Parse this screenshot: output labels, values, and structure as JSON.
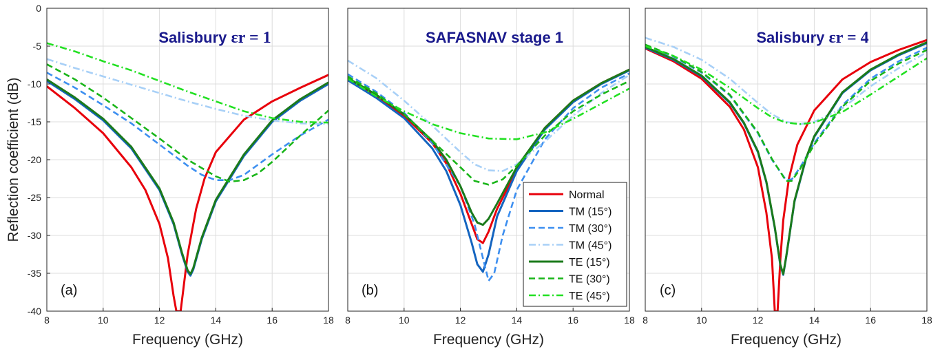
{
  "chart_data": [
    {
      "type": "line",
      "title_prefix": "Salisbury ",
      "title_symbol": "εr = 1",
      "panel_label": "(a)",
      "xlabel": "Frequency (GHz)",
      "ylabel": "Reflection coefficient (dB)",
      "xlim": [
        8,
        18
      ],
      "ylim": [
        -40,
        0
      ],
      "xticks": [
        "8",
        "10",
        "12",
        "14",
        "16",
        "18"
      ],
      "yticks": [
        "0",
        "-5",
        "-10",
        "-15",
        "-20",
        "-25",
        "-30",
        "-35",
        "-40"
      ],
      "grid": true,
      "series": [
        {
          "name": "Normal",
          "x": [
            8,
            9,
            10,
            11,
            11.5,
            12,
            12.3,
            12.5,
            12.6,
            12.75,
            12.85,
            13,
            13.3,
            13.6,
            14,
            15,
            16,
            17,
            18
          ],
          "y": [
            -10.3,
            -13.2,
            -16.5,
            -21,
            -24,
            -28.5,
            -33,
            -38,
            -40,
            -40,
            -37,
            -32.5,
            -26.5,
            -22.5,
            -19,
            -14.7,
            -12.3,
            -10.5,
            -8.8
          ]
        },
        {
          "name": "TM (15°)",
          "x": [
            8,
            9,
            10,
            11,
            12,
            12.5,
            12.8,
            13,
            13.1,
            13.2,
            13.5,
            14,
            15,
            16,
            17,
            18
          ],
          "y": [
            -9.6,
            -12,
            -14.8,
            -18.5,
            -24,
            -28.5,
            -32.5,
            -34.8,
            -35.3,
            -34.5,
            -30.5,
            -25.5,
            -19.5,
            -15,
            -12.2,
            -10
          ]
        },
        {
          "name": "TM (30°)",
          "x": [
            8,
            9,
            10,
            11,
            12,
            13,
            13.5,
            14,
            14.5,
            15,
            16,
            17,
            18
          ],
          "y": [
            -8.5,
            -10.5,
            -12.8,
            -15.2,
            -18,
            -20.8,
            -22,
            -22.7,
            -22.7,
            -22,
            -19.3,
            -16.8,
            -14.7
          ]
        },
        {
          "name": "TM (45°)",
          "x": [
            8,
            9,
            10,
            11,
            12,
            13,
            14,
            15,
            16,
            17,
            18
          ],
          "y": [
            -6.7,
            -7.9,
            -9,
            -10.1,
            -11.2,
            -12.3,
            -13.3,
            -14.2,
            -14.8,
            -15.2,
            -15.3
          ]
        },
        {
          "name": "TE (15°)",
          "x": [
            8,
            9,
            10,
            11,
            12,
            12.5,
            12.8,
            13,
            13.1,
            13.2,
            13.5,
            14,
            15,
            16,
            17,
            18
          ],
          "y": [
            -9.4,
            -11.8,
            -14.6,
            -18.3,
            -23.8,
            -28.3,
            -32.3,
            -34.6,
            -35.1,
            -34.3,
            -30.3,
            -25.3,
            -19.3,
            -14.8,
            -12,
            -9.8
          ]
        },
        {
          "name": "TE (30°)",
          "x": [
            8,
            9,
            10,
            11,
            12,
            13,
            14,
            14.5,
            15,
            15.5,
            16,
            17,
            18
          ],
          "y": [
            -7.4,
            -9.4,
            -11.8,
            -14.5,
            -17.2,
            -20,
            -22.2,
            -22.9,
            -22.7,
            -21.8,
            -20.3,
            -16.8,
            -13.5
          ]
        },
        {
          "name": "TE (45°)",
          "x": [
            8,
            9,
            10,
            11,
            12,
            13,
            14,
            15,
            16,
            17,
            18
          ],
          "y": [
            -4.6,
            -5.7,
            -7,
            -8.2,
            -9.6,
            -11,
            -12.3,
            -13.6,
            -14.5,
            -15,
            -15.1
          ]
        }
      ]
    },
    {
      "type": "line",
      "title_prefix": "SAFASNAV stage 1",
      "title_symbol": "",
      "panel_label": "(b)",
      "xlabel": "Frequency (GHz)",
      "ylabel": "",
      "xlim": [
        8,
        18
      ],
      "ylim": [
        -40,
        0
      ],
      "xticks": [
        "8",
        "10",
        "12",
        "14",
        "16",
        "18"
      ],
      "yticks": [],
      "grid": true,
      "series": [
        {
          "name": "Normal",
          "x": [
            8,
            9,
            10,
            11,
            11.5,
            12,
            12.4,
            12.6,
            12.8,
            13,
            13.3,
            14,
            15,
            16,
            17,
            18
          ],
          "y": [
            -9.4,
            -11.6,
            -14.2,
            -17.8,
            -20.5,
            -24.5,
            -28.5,
            -30.5,
            -31,
            -29.5,
            -26.5,
            -21.3,
            -15.8,
            -12.2,
            -9.9,
            -8.1
          ]
        },
        {
          "name": "TM (15°)",
          "x": [
            8,
            9,
            10,
            11,
            11.5,
            12,
            12.4,
            12.6,
            12.8,
            13,
            13.3,
            14,
            15,
            16,
            17,
            18
          ],
          "y": [
            -9.5,
            -11.8,
            -14.5,
            -18.5,
            -21.5,
            -26,
            -31,
            -33.8,
            -34.8,
            -32.5,
            -27.5,
            -21.5,
            -16,
            -12.4,
            -10,
            -8.2
          ]
        },
        {
          "name": "TM (30°)",
          "x": [
            8,
            9,
            10,
            11,
            12,
            12.5,
            12.8,
            13,
            13.2,
            13.5,
            14,
            15,
            16,
            17,
            18
          ],
          "y": [
            -8.7,
            -11,
            -13.8,
            -17.8,
            -23.5,
            -28.5,
            -33,
            -36,
            -35,
            -30,
            -24,
            -17.3,
            -13.2,
            -10.5,
            -8.6
          ]
        },
        {
          "name": "TM (45°)",
          "x": [
            8,
            9,
            10,
            11,
            12,
            12.5,
            13,
            13.5,
            14,
            15,
            16,
            17,
            18
          ],
          "y": [
            -6.9,
            -9.2,
            -12.2,
            -15.5,
            -19,
            -20.6,
            -21.4,
            -21.5,
            -20.6,
            -17.6,
            -14.2,
            -11.2,
            -8.8
          ]
        },
        {
          "name": "TE (15°)",
          "x": [
            8,
            9,
            10,
            11,
            11.5,
            12,
            12.4,
            12.6,
            12.8,
            13,
            13.3,
            14,
            15,
            16,
            17,
            18
          ],
          "y": [
            -9.2,
            -11.4,
            -14,
            -17.5,
            -20,
            -23.5,
            -27,
            -28.3,
            -28.6,
            -27.8,
            -25.8,
            -21,
            -15.8,
            -12.2,
            -9.9,
            -8.1
          ]
        },
        {
          "name": "TE (30°)",
          "x": [
            8,
            9,
            10,
            11,
            12,
            12.5,
            13,
            13.5,
            14,
            15,
            16,
            17,
            18
          ],
          "y": [
            -9,
            -11.2,
            -14,
            -17.5,
            -21,
            -22.8,
            -23.3,
            -22.6,
            -20.8,
            -16.8,
            -13.6,
            -11.4,
            -9.6
          ]
        },
        {
          "name": "TE (45°)",
          "x": [
            8,
            9,
            10,
            11,
            12,
            13,
            14,
            15,
            16,
            17,
            18
          ],
          "y": [
            -9.3,
            -11.6,
            -13.6,
            -15.3,
            -16.5,
            -17.2,
            -17.3,
            -16.4,
            -14.6,
            -12.6,
            -10.6
          ]
        }
      ]
    },
    {
      "type": "line",
      "title_prefix": "Salisbury ",
      "title_symbol": "εr = 4",
      "panel_label": "(c)",
      "xlabel": "Frequency (GHz)",
      "ylabel": "",
      "xlim": [
        8,
        18
      ],
      "ylim": [
        -40,
        0
      ],
      "xticks": [
        "8",
        "10",
        "12",
        "14",
        "16",
        "18"
      ],
      "yticks": [],
      "grid": true,
      "series": [
        {
          "name": "Normal",
          "x": [
            8,
            9,
            10,
            11,
            11.5,
            12,
            12.3,
            12.5,
            12.6,
            12.7,
            12.8,
            12.9,
            13.1,
            13.4,
            14,
            15,
            16,
            17,
            18
          ],
          "y": [
            -5.3,
            -7,
            -9.3,
            -13,
            -16,
            -21,
            -27,
            -33,
            -40,
            -40,
            -33,
            -28,
            -22.5,
            -18,
            -13.5,
            -9.4,
            -7.1,
            -5.5,
            -4.2
          ]
        },
        {
          "name": "TM (15°)",
          "x": [
            8,
            9,
            10,
            11,
            11.5,
            12,
            12.3,
            12.6,
            12.8,
            12.9,
            13,
            13.3,
            13.7,
            14,
            15,
            16,
            17,
            18
          ],
          "y": [
            -5.2,
            -6.8,
            -9,
            -12.5,
            -15.2,
            -19,
            -23,
            -29,
            -34,
            -35.2,
            -33,
            -25.5,
            -20,
            -17,
            -11.2,
            -8.2,
            -6.2,
            -4.6
          ]
        },
        {
          "name": "TM (30°)",
          "x": [
            8,
            9,
            10,
            11,
            12,
            12.5,
            13,
            13.2,
            13.5,
            14,
            15,
            16,
            17,
            18
          ],
          "y": [
            -4.9,
            -6.4,
            -8.5,
            -11.5,
            -16.5,
            -20,
            -22.7,
            -22.6,
            -21,
            -17.8,
            -12.8,
            -9.3,
            -7,
            -5.2
          ]
        },
        {
          "name": "TM (45°)",
          "x": [
            8,
            9,
            10,
            11,
            12,
            12.5,
            13,
            13.5,
            14,
            15,
            16,
            17,
            18
          ],
          "y": [
            -3.9,
            -5.1,
            -6.8,
            -9.3,
            -12.5,
            -14,
            -15,
            -15.3,
            -15,
            -13.2,
            -10.3,
            -7.9,
            -5.8
          ]
        },
        {
          "name": "TE (15°)",
          "x": [
            8,
            9,
            10,
            11,
            11.5,
            12,
            12.3,
            12.6,
            12.8,
            12.9,
            13,
            13.3,
            13.7,
            14,
            15,
            16,
            17,
            18
          ],
          "y": [
            -5.1,
            -6.7,
            -8.9,
            -12.4,
            -15.1,
            -18.9,
            -22.9,
            -28.9,
            -33.9,
            -35.1,
            -32.9,
            -25.4,
            -19.9,
            -16.9,
            -11.1,
            -8.1,
            -6.1,
            -4.5
          ]
        },
        {
          "name": "TE (30°)",
          "x": [
            8,
            9,
            10,
            11,
            12,
            12.5,
            13,
            13.2,
            13.5,
            14,
            15,
            16,
            17,
            18
          ],
          "y": [
            -4.8,
            -6.3,
            -8.4,
            -11.4,
            -16.4,
            -19.9,
            -22.8,
            -22.8,
            -21.2,
            -18,
            -13,
            -9.6,
            -7.3,
            -5.5
          ]
        },
        {
          "name": "TE (45°)",
          "x": [
            8,
            9,
            10,
            11,
            12,
            12.5,
            13,
            13.5,
            14,
            15,
            16,
            17,
            18
          ],
          "y": [
            -5,
            -6.3,
            -8.1,
            -10.5,
            -13.2,
            -14.4,
            -15.1,
            -15.3,
            -15.1,
            -13.7,
            -11.4,
            -9,
            -6.6
          ]
        }
      ]
    }
  ],
  "legend": {
    "entries": [
      "Normal",
      "TM (15°)",
      "TM (30°)",
      "TM (45°)",
      "TE (15°)",
      "TE (30°)",
      "TE (45°)"
    ],
    "placement": "inside panel (b), lower-right"
  },
  "styles": {
    "Normal": {
      "color": "#e8000b",
      "dash": "solid"
    },
    "TM (15°)": {
      "color": "#1565c0",
      "dash": "solid"
    },
    "TM (30°)": {
      "color": "#3d8ff0",
      "dash": "dashed"
    },
    "TM (45°)": {
      "color": "#a8d0f7",
      "dash": "dashdot"
    },
    "TE (15°)": {
      "color": "#1b7a1b",
      "dash": "solid"
    },
    "TE (30°)": {
      "color": "#19b519",
      "dash": "dashed"
    },
    "TE (45°)": {
      "color": "#22e022",
      "dash": "dashdot"
    }
  }
}
